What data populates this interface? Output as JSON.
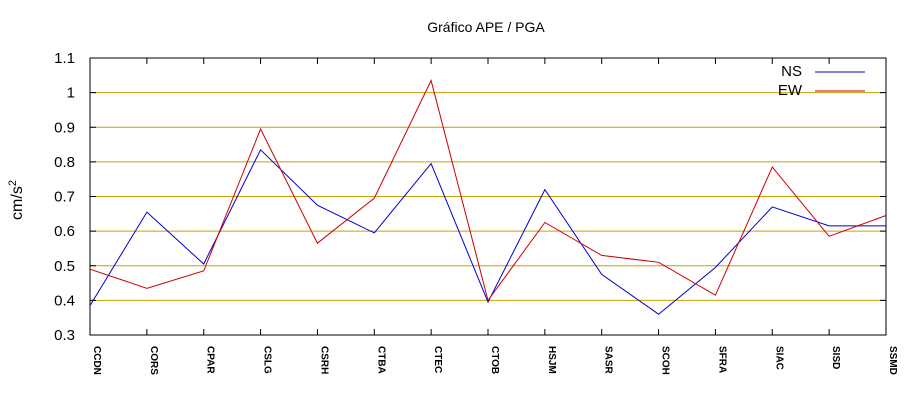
{
  "chart_data": {
    "type": "line",
    "title": "Gráfico  APE / PGA",
    "ylabel": "cm/s",
    "ylabel_sup": "2",
    "xlabel": "",
    "ylim": [
      0.3,
      1.1
    ],
    "yticks": [
      "0.3",
      "0.4",
      "0.5",
      "0.6",
      "0.7",
      "0.8",
      "0.9",
      "1",
      "1.1"
    ],
    "grid": true,
    "legend_position": "top-right",
    "categories": [
      "CCDN",
      "CORS",
      "CPAR",
      "CSLG",
      "CSRH",
      "CTBA",
      "CTEC",
      "CTOB",
      "HSJM",
      "SASR",
      "SCOH",
      "SFRA",
      "SIAC",
      "SISD",
      "SSMD"
    ],
    "series": [
      {
        "name": "NS",
        "color": "#0000cc",
        "values": [
          0.385,
          0.655,
          0.505,
          0.835,
          0.675,
          0.595,
          0.795,
          0.395,
          0.72,
          0.475,
          0.36,
          0.495,
          0.67,
          0.615,
          0.615
        ]
      },
      {
        "name": "EW",
        "color": "#cc0000",
        "values": [
          0.49,
          0.435,
          0.485,
          0.895,
          0.565,
          0.695,
          1.035,
          0.4,
          0.625,
          0.53,
          0.51,
          0.415,
          0.785,
          0.585,
          0.645
        ]
      }
    ]
  }
}
